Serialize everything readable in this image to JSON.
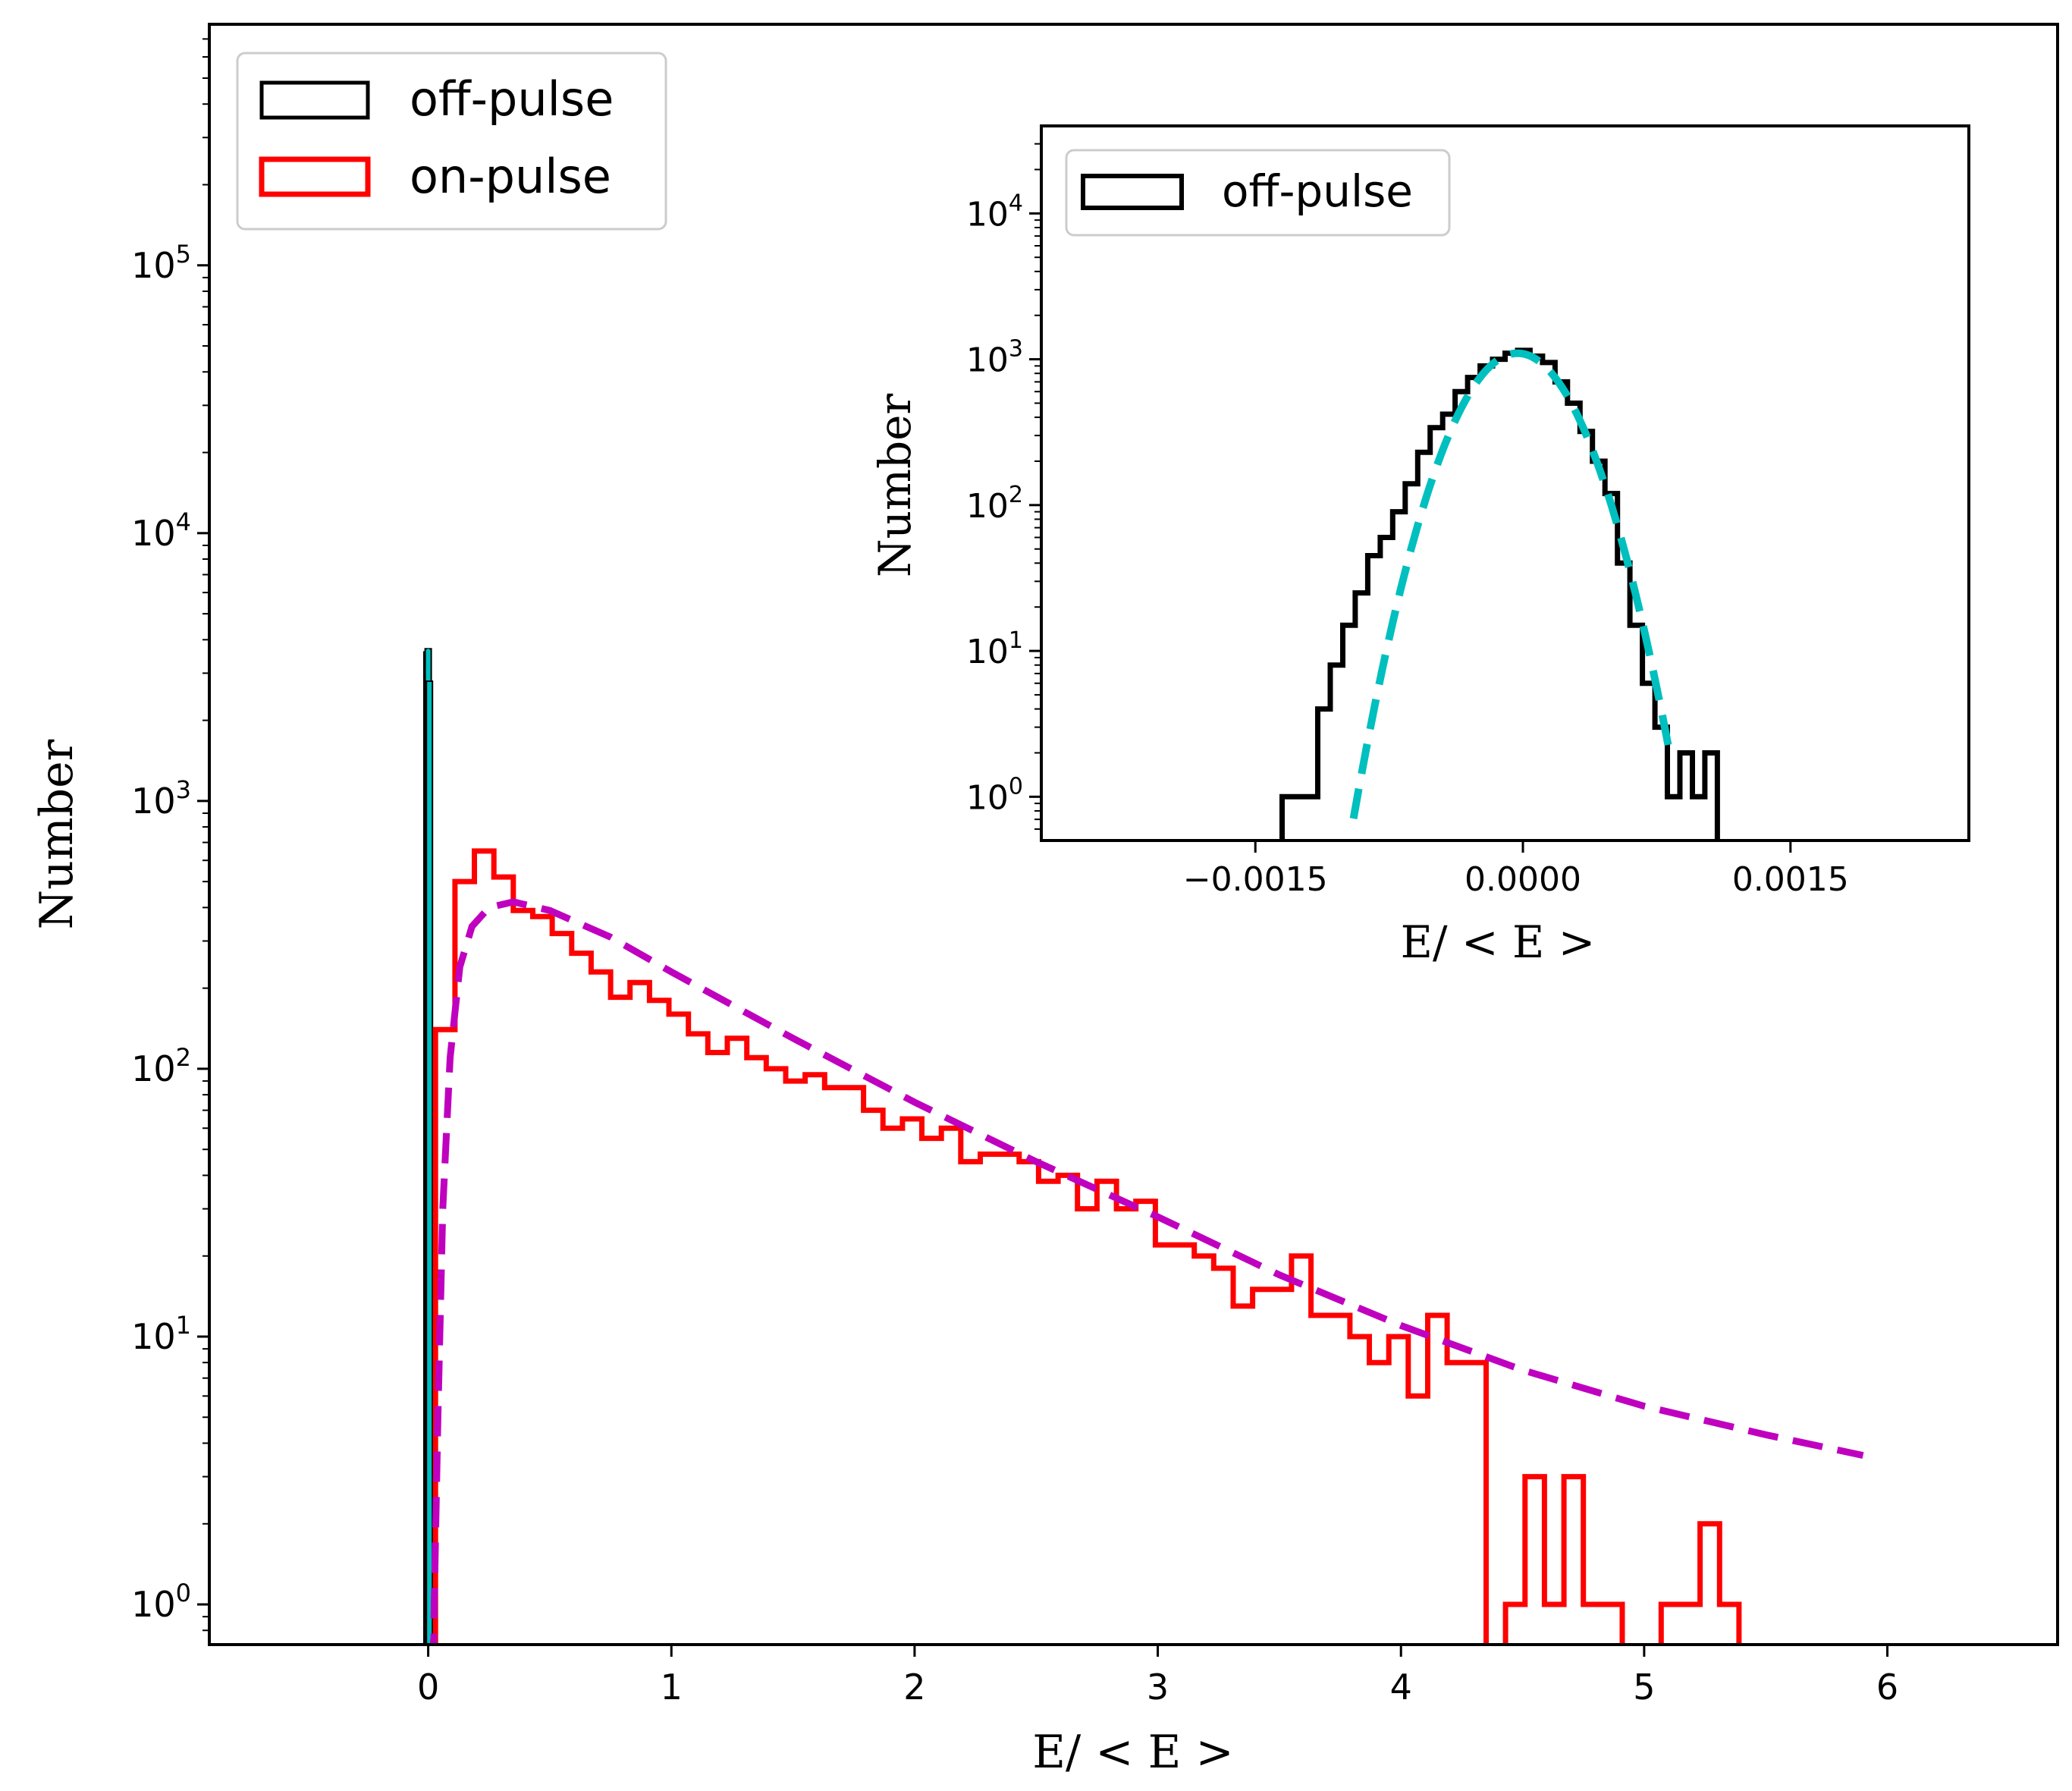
{
  "chart_data": [
    {
      "id": "main",
      "type": "histogram-step",
      "title": "",
      "xlabel": "E/ < E >",
      "ylabel": "Number",
      "xlim": [
        -0.9,
        6.7
      ],
      "ylim_log10": [
        -0.15,
        5.9
      ],
      "yscale": "log",
      "x_ticks": [
        0,
        1,
        2,
        3,
        4,
        5,
        6
      ],
      "x_tick_labels": [
        "0",
        "1",
        "2",
        "3",
        "4",
        "5",
        "6"
      ],
      "y_ticks_exp": [
        0,
        1,
        2,
        3,
        4,
        5
      ],
      "y_tick_base": "10",
      "legend": {
        "position": "upper-left",
        "entries": [
          "off-pulse",
          "on-pulse"
        ]
      },
      "colors": {
        "off": "#000000",
        "on": "#ff0000",
        "fit": "#bf00bf",
        "gauss": "#00bfbf"
      },
      "series": [
        {
          "name": "off-pulse",
          "kind": "spike",
          "x": [
            -0.005,
            0.0,
            0.005
          ],
          "values": [
            3600,
            3700,
            2800
          ]
        },
        {
          "name": "on-pulse",
          "kind": "step",
          "edges": [
            0.03,
            0.11,
            0.19,
            0.27,
            0.35,
            0.43,
            0.51,
            0.59,
            0.67,
            0.75,
            0.83,
            0.91,
            0.99,
            1.07,
            1.15,
            1.23,
            1.31,
            1.39,
            1.47,
            1.55,
            1.63,
            1.71,
            1.79,
            1.87,
            1.95,
            2.03,
            2.11,
            2.19,
            2.27,
            2.35,
            2.43,
            2.51,
            2.59,
            2.67,
            2.75,
            2.83,
            2.91,
            2.99,
            3.07,
            3.15,
            3.23,
            3.31,
            3.39,
            3.47,
            3.55,
            3.63,
            3.71,
            3.79,
            3.87,
            3.95,
            4.03,
            4.11,
            4.19,
            4.27,
            4.35,
            4.43,
            4.51,
            4.59,
            4.67,
            4.75,
            4.83,
            4.91,
            4.99,
            5.07,
            5.15,
            5.23,
            5.31,
            5.39
          ],
          "values": [
            140,
            500,
            650,
            520,
            390,
            370,
            320,
            270,
            230,
            185,
            210,
            180,
            160,
            135,
            115,
            130,
            110,
            100,
            90,
            95,
            85,
            85,
            70,
            60,
            65,
            55,
            60,
            45,
            48,
            48,
            45,
            38,
            40,
            30,
            38,
            30,
            32,
            22,
            22,
            20,
            18,
            13,
            15,
            15,
            20,
            12,
            12,
            10,
            8,
            10,
            6,
            12,
            8,
            8,
            0.3,
            1,
            3,
            1,
            3,
            1,
            1,
            0.3,
            0.3,
            1,
            1,
            2,
            1
          ]
        },
        {
          "name": "fit",
          "kind": "dashed-curve",
          "description_params": {
            "x_peak": 0.35,
            "y_peak": 420
          },
          "x": [
            0.02,
            0.04,
            0.06,
            0.09,
            0.13,
            0.18,
            0.25,
            0.35,
            0.5,
            0.75,
            1.0,
            1.5,
            2.0,
            2.5,
            3.0,
            3.5,
            4.0,
            4.5,
            5.0,
            5.5,
            5.9
          ],
          "values": [
            0.6,
            5,
            30,
            110,
            240,
            340,
            400,
            420,
            390,
            310,
            230,
            130,
            75,
            45,
            28,
            17,
            11,
            7.5,
            5.5,
            4.3,
            3.6
          ]
        },
        {
          "name": "off-pulse-fit",
          "kind": "dashed-curve",
          "x": [
            -0.005,
            0.0,
            0.005
          ],
          "values": [
            3000,
            3700,
            2500
          ]
        }
      ]
    },
    {
      "id": "inset",
      "type": "histogram-step",
      "xlabel": "E/ < E >",
      "ylabel": "Number",
      "xlim": [
        -0.0027,
        0.0025
      ],
      "ylim_log10": [
        -0.3,
        4.6
      ],
      "yscale": "log",
      "x_ticks": [
        -0.0015,
        0.0,
        0.0015
      ],
      "x_tick_labels": [
        "−0.0015",
        "0.0000",
        "0.0015"
      ],
      "y_ticks_exp": [
        0,
        1,
        2,
        3,
        4
      ],
      "y_tick_base": "10",
      "legend": {
        "position": "upper-left",
        "entries": [
          "off-pulse"
        ]
      },
      "series": [
        {
          "name": "off-pulse",
          "kind": "step",
          "edges": [
            -0.00135,
            -0.00115,
            -0.00108,
            -0.00101,
            -0.00094,
            -0.00087,
            -0.0008,
            -0.00073,
            -0.00066,
            -0.00059,
            -0.00052,
            -0.00045,
            -0.00038,
            -0.00031,
            -0.00024,
            -0.00017,
            -0.0001,
            -3e-05,
            4e-05,
            0.00011,
            0.00018,
            0.00025,
            0.00032,
            0.00039,
            0.00046,
            0.00053,
            0.0006,
            0.00067,
            0.00074,
            0.00081,
            0.00088,
            0.00095,
            0.00102,
            0.00109
          ],
          "values": [
            1,
            4,
            8,
            15,
            25,
            45,
            60,
            90,
            140,
            230,
            340,
            420,
            600,
            750,
            900,
            1000,
            1100,
            1150,
            1050,
            950,
            700,
            500,
            320,
            200,
            120,
            40,
            15,
            6,
            3,
            1,
            2,
            1,
            2
          ]
        },
        {
          "name": "gaussian-fit",
          "kind": "dashed-curve",
          "gauss": {
            "amplitude": 1100,
            "mu": -3e-05,
            "sigma": 0.00024
          },
          "x_range": [
            -0.00095,
            0.00082
          ]
        }
      ]
    }
  ]
}
